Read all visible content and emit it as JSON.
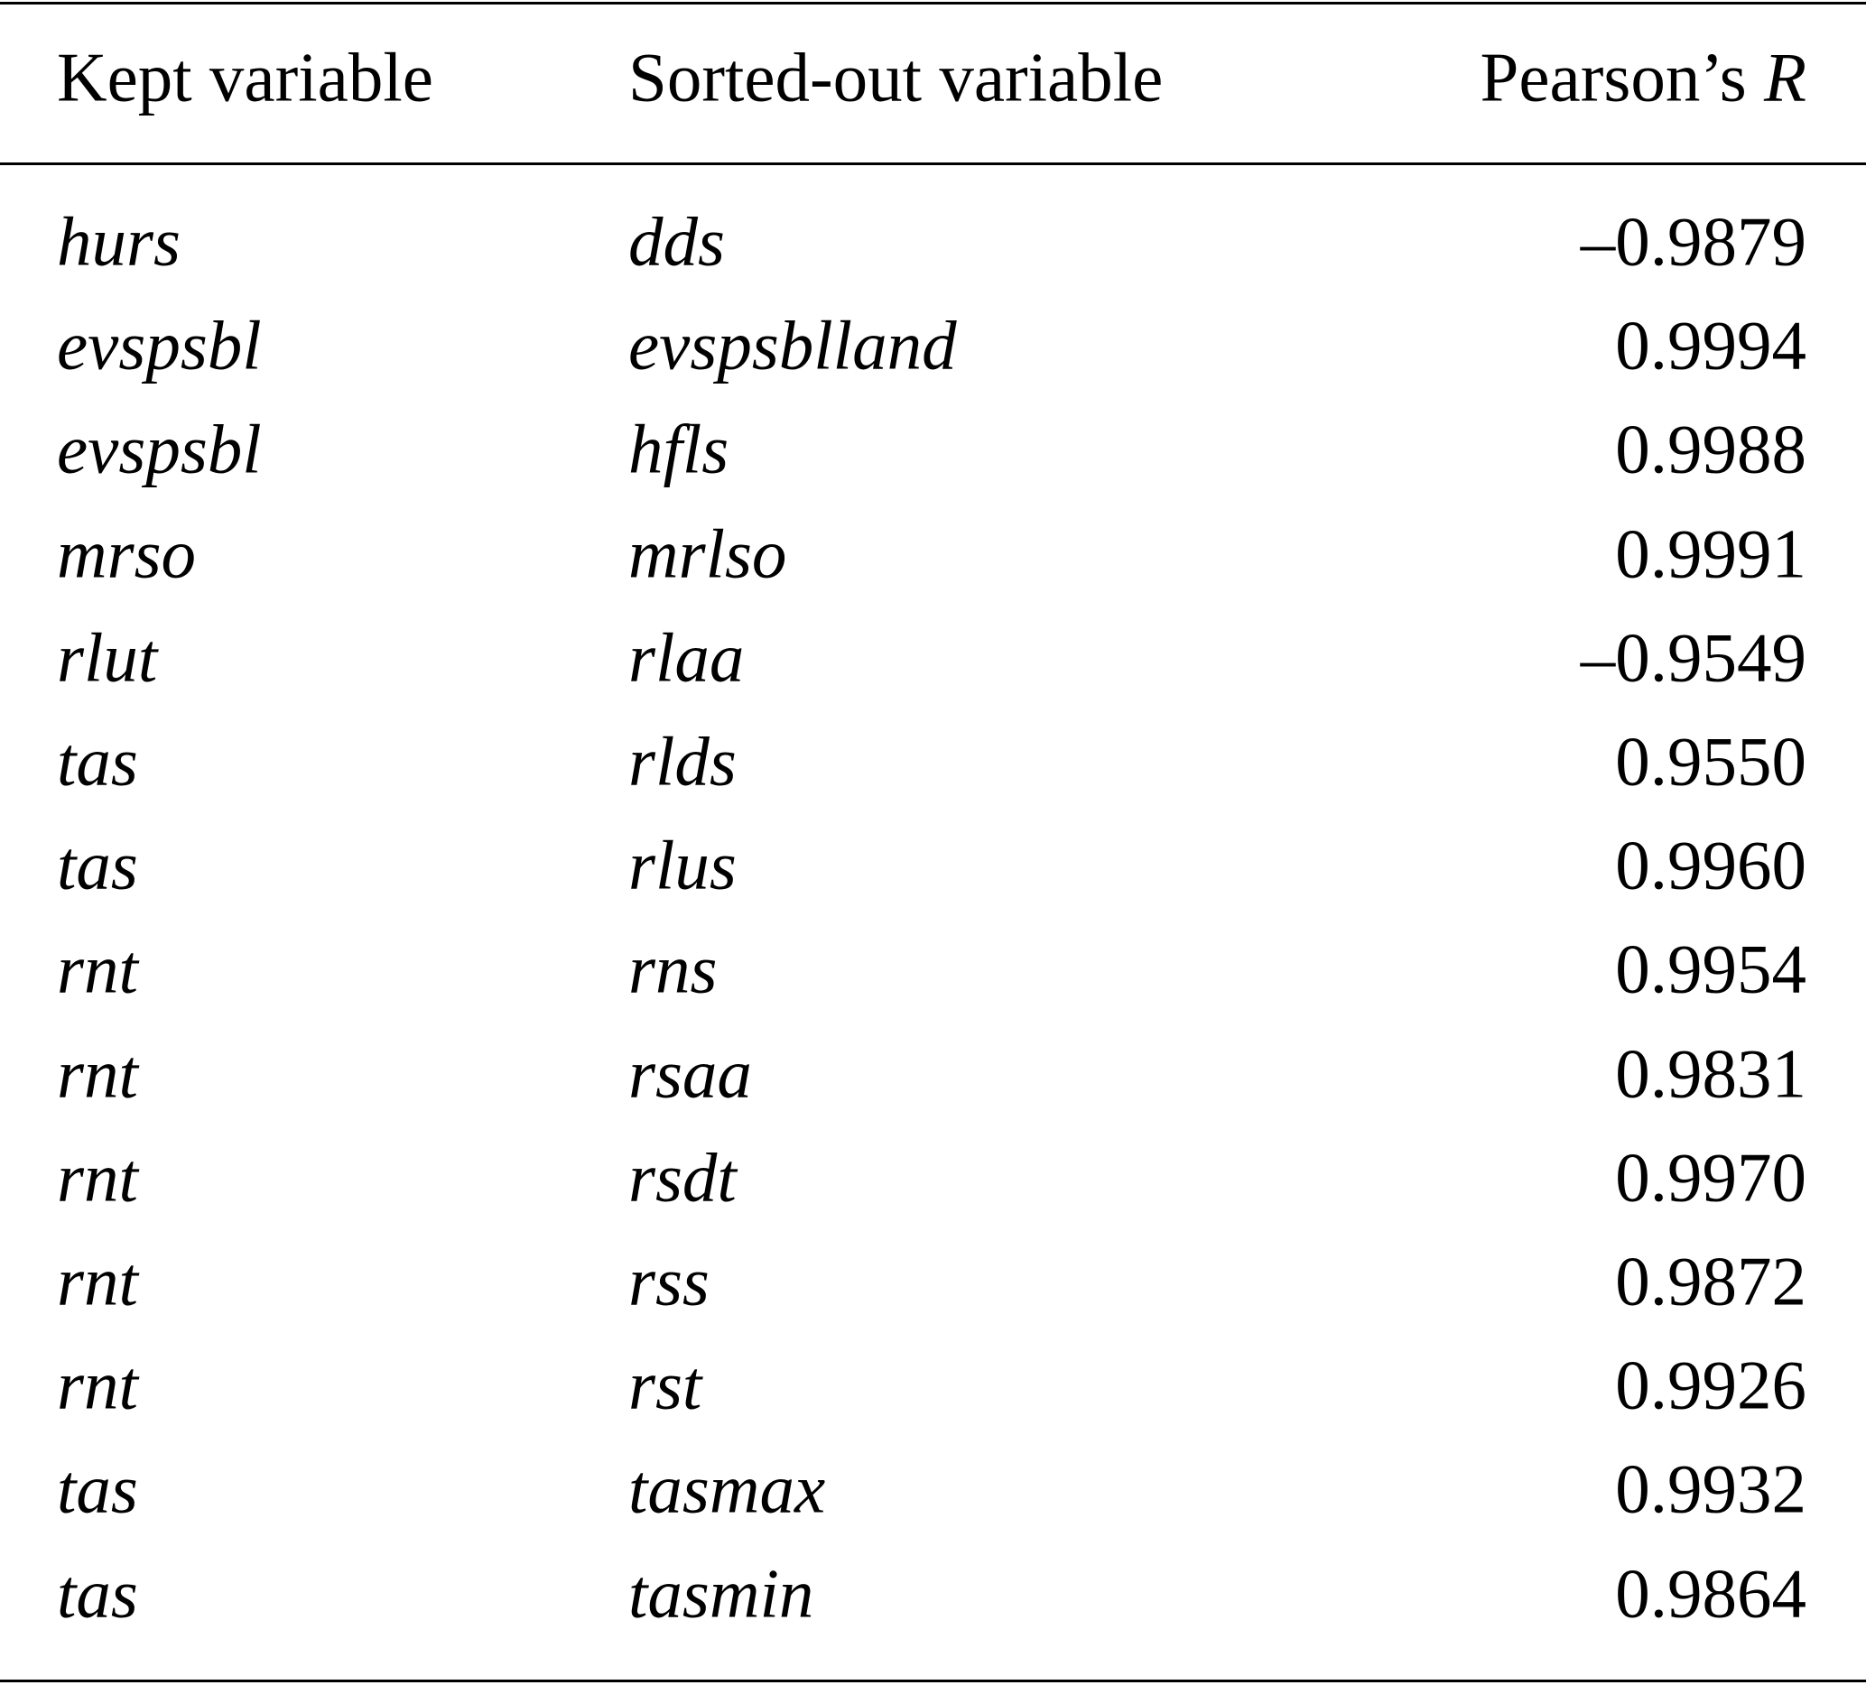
{
  "table": {
    "headers": [
      "Kept variable",
      "Sorted-out variable",
      "Pearson’s ",
      "R"
    ],
    "rows": [
      [
        "hurs",
        "dds",
        "–0.9879"
      ],
      [
        "evspsbl",
        "evspsblland",
        "0.9994"
      ],
      [
        "evspsbl",
        "hfls",
        "0.9988"
      ],
      [
        "mrso",
        "mrlso",
        "0.9991"
      ],
      [
        "rlut",
        "rlaa",
        "–0.9549"
      ],
      [
        "tas",
        "rlds",
        "0.9550"
      ],
      [
        "tas",
        "rlus",
        "0.9960"
      ],
      [
        "rnt",
        "rns",
        "0.9954"
      ],
      [
        "rnt",
        "rsaa",
        "0.9831"
      ],
      [
        "rnt",
        "rsdt",
        "0.9970"
      ],
      [
        "rnt",
        "rss",
        "0.9872"
      ],
      [
        "rnt",
        "rst",
        "0.9926"
      ],
      [
        "tas",
        "tasmax",
        "0.9932"
      ],
      [
        "tas",
        "tasmin",
        "0.9864"
      ]
    ]
  }
}
